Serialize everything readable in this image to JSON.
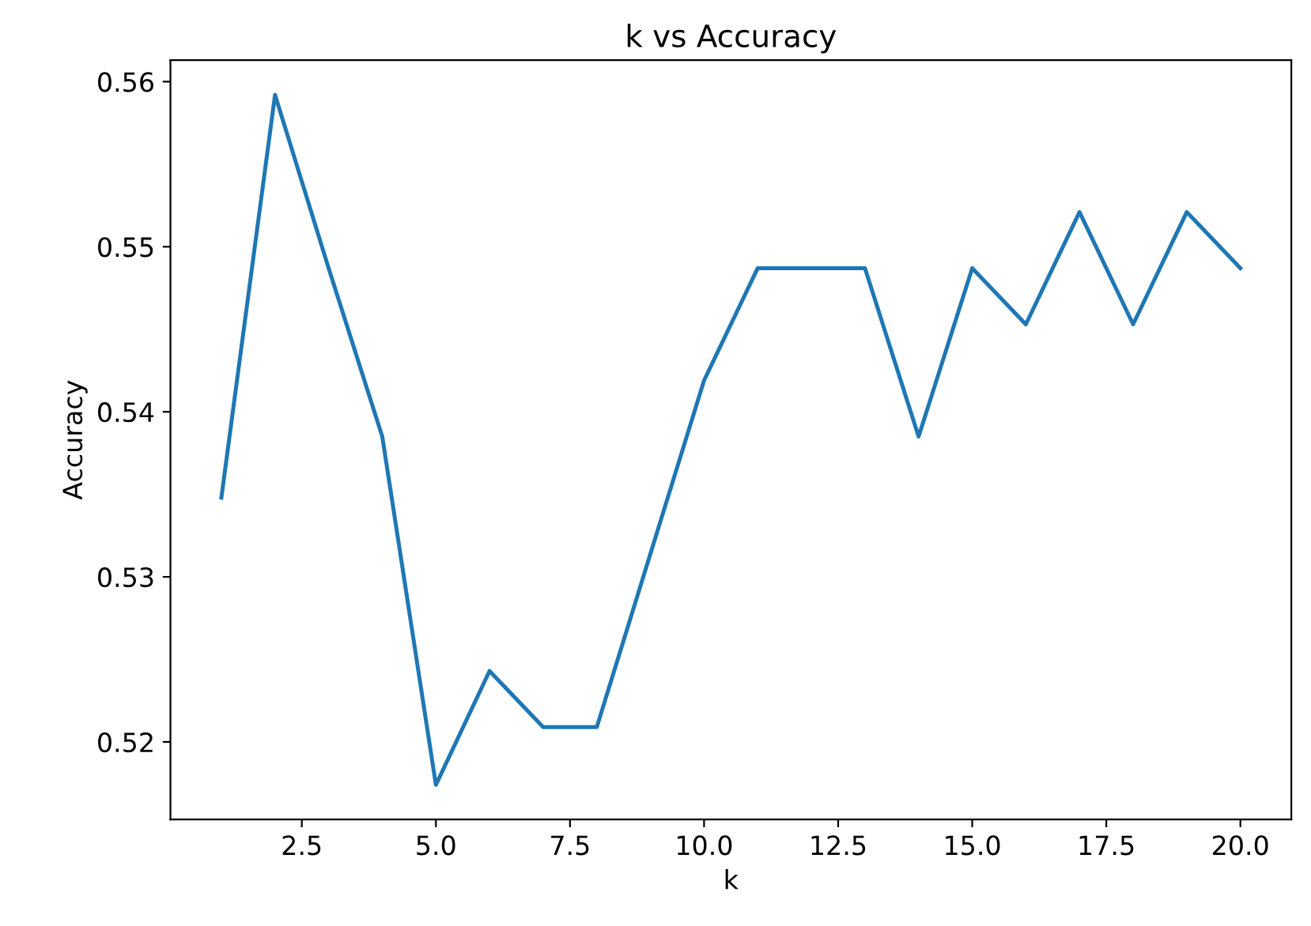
{
  "chart_data": {
    "type": "line",
    "title": "k vs Accuracy",
    "xlabel": "k",
    "ylabel": "Accuracy",
    "x": [
      1,
      2,
      3,
      4,
      5,
      6,
      7,
      8,
      9,
      10,
      11,
      12,
      13,
      14,
      15,
      16,
      17,
      18,
      19,
      20
    ],
    "series": [
      {
        "color": "#1f77b4",
        "values": [
          0.5348,
          0.5592,
          0.5487,
          0.5385,
          0.5174,
          0.5243,
          0.5209,
          0.5209,
          0.5314,
          0.5419,
          0.5487,
          0.5487,
          0.5487,
          0.5385,
          0.5487,
          0.5453,
          0.5521,
          0.5453,
          0.5521,
          0.5487
        ]
      }
    ],
    "xlim": [
      0.05,
      20.95
    ],
    "ylim": [
      0.5153,
      0.5613
    ],
    "xticks": [
      {
        "value": 2.5,
        "label": "2.5"
      },
      {
        "value": 5,
        "label": "5.0"
      },
      {
        "value": 7.5,
        "label": "7.5"
      },
      {
        "value": 10,
        "label": "10.0"
      },
      {
        "value": 12.5,
        "label": "12.5"
      },
      {
        "value": 15,
        "label": "15.0"
      },
      {
        "value": 17.5,
        "label": "17.5"
      },
      {
        "value": 20,
        "label": "20.0"
      }
    ],
    "yticks": [
      0.52,
      0.53,
      0.54,
      0.55,
      0.56
    ],
    "grid": false
  }
}
